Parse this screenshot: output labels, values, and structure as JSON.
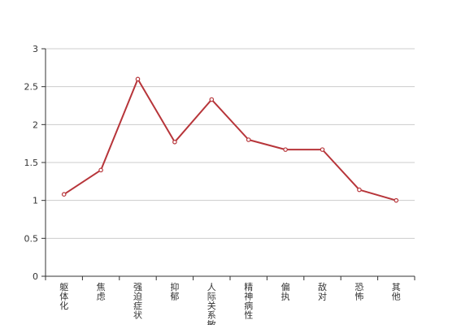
{
  "chart_data": {
    "type": "line",
    "categories": [
      "躯体化",
      "焦虑",
      "强迫症状",
      "抑郁",
      "人际关系敏感",
      "精神病性",
      "偏执",
      "敌对",
      "恐怖",
      "其他"
    ],
    "series": [
      {
        "values": [
          1.08,
          1.4,
          2.6,
          1.77,
          2.33,
          1.8,
          1.67,
          1.67,
          1.14,
          1.0
        ]
      }
    ],
    "title": "",
    "xlabel": "",
    "ylabel": "",
    "ylim": [
      0,
      3
    ],
    "yticks": [
      "0",
      "0.5",
      "1",
      "1.5",
      "2",
      "2.5",
      "3"
    ],
    "grid": true,
    "legend": "none",
    "colors": {
      "line": "#b7353a",
      "marker_fill": "#ffffff",
      "grid": "#cccccc",
      "axis": "#333333"
    }
  }
}
